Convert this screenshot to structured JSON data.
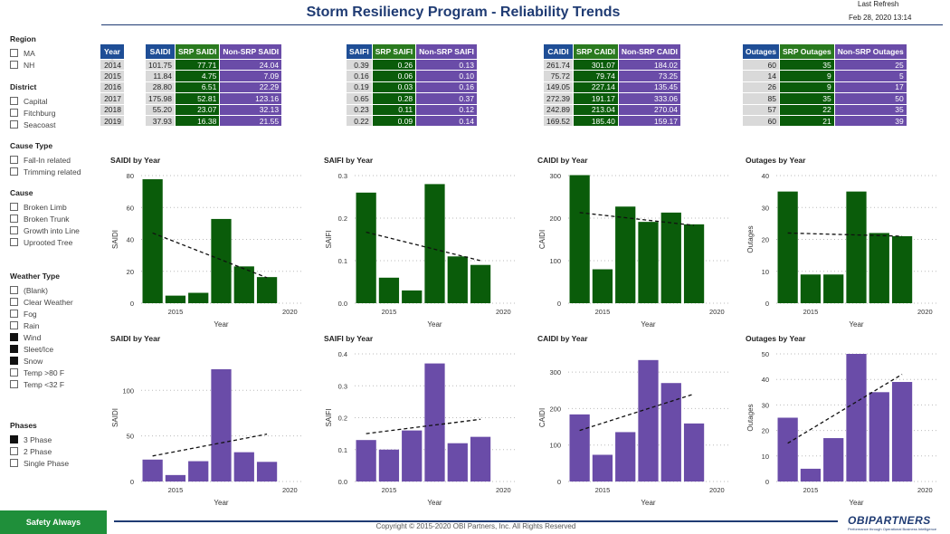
{
  "header": {
    "title": "Storm Resiliency Program - Reliability Trends",
    "refresh_label": "Last Refresh",
    "refresh_value": "Feb 28, 2020 13:14"
  },
  "filters": [
    {
      "title": "Region",
      "items": [
        {
          "label": "MA",
          "checked": false
        },
        {
          "label": "NH",
          "checked": false
        }
      ]
    },
    {
      "title": "District",
      "items": [
        {
          "label": "Capital",
          "checked": false
        },
        {
          "label": "Fitchburg",
          "checked": false
        },
        {
          "label": "Seacoast",
          "checked": false
        }
      ]
    },
    {
      "title": "Cause Type",
      "items": [
        {
          "label": "Fall-In related",
          "checked": false
        },
        {
          "label": "Trimming related",
          "checked": false
        }
      ]
    },
    {
      "title": "Cause",
      "items": [
        {
          "label": "Broken Limb",
          "checked": false
        },
        {
          "label": "Broken Trunk",
          "checked": false
        },
        {
          "label": "Growth into Line",
          "checked": false
        },
        {
          "label": "Uprooted Tree",
          "checked": false
        }
      ]
    },
    {
      "title": "Weather Type",
      "items": [
        {
          "label": "(Blank)",
          "checked": false
        },
        {
          "label": "Clear Weather",
          "checked": false
        },
        {
          "label": "Fog",
          "checked": false
        },
        {
          "label": "Rain",
          "checked": false
        },
        {
          "label": "Wind",
          "checked": true
        },
        {
          "label": "Sleet/Ice",
          "checked": true
        },
        {
          "label": "Snow",
          "checked": true
        },
        {
          "label": "Temp >80 F",
          "checked": false
        },
        {
          "label": "Temp <32 F",
          "checked": false
        }
      ]
    },
    {
      "title": "Phases",
      "items": [
        {
          "label": "3 Phase",
          "checked": true
        },
        {
          "label": "2 Phase",
          "checked": false
        },
        {
          "label": "Single Phase",
          "checked": false
        }
      ]
    }
  ],
  "tables": {
    "year": {
      "header": "Year",
      "values": [
        "2014",
        "2015",
        "2016",
        "2017",
        "2018",
        "2019"
      ]
    },
    "saidi": {
      "headers": [
        "SAIDI",
        "SRP SAIDI",
        "Non-SRP SAIDI"
      ],
      "rows": [
        [
          "101.75",
          "77.71",
          "24.04"
        ],
        [
          "11.84",
          "4.75",
          "7.09"
        ],
        [
          "28.80",
          "6.51",
          "22.29"
        ],
        [
          "175.98",
          "52.81",
          "123.16"
        ],
        [
          "55.20",
          "23.07",
          "32.13"
        ],
        [
          "37.93",
          "16.38",
          "21.55"
        ]
      ]
    },
    "saifi": {
      "headers": [
        "SAIFI",
        "SRP SAIFI",
        "Non-SRP SAIFI"
      ],
      "rows": [
        [
          "0.39",
          "0.26",
          "0.13"
        ],
        [
          "0.16",
          "0.06",
          "0.10"
        ],
        [
          "0.19",
          "0.03",
          "0.16"
        ],
        [
          "0.65",
          "0.28",
          "0.37"
        ],
        [
          "0.23",
          "0.11",
          "0.12"
        ],
        [
          "0.22",
          "0.09",
          "0.14"
        ]
      ]
    },
    "caidi": {
      "headers": [
        "CAIDI",
        "SRP CAIDI",
        "Non-SRP CAIDI"
      ],
      "rows": [
        [
          "261.74",
          "301.07",
          "184.02"
        ],
        [
          "75.72",
          "79.74",
          "73.25"
        ],
        [
          "149.05",
          "227.14",
          "135.45"
        ],
        [
          "272.39",
          "191.17",
          "333.06"
        ],
        [
          "242.89",
          "213.04",
          "270.04"
        ],
        [
          "169.52",
          "185.40",
          "159.17"
        ]
      ]
    },
    "outages": {
      "headers": [
        "Outages",
        "SRP Outages",
        "Non-SRP Outages"
      ],
      "rows": [
        [
          "60",
          "35",
          "25"
        ],
        [
          "14",
          "9",
          "5"
        ],
        [
          "26",
          "9",
          "17"
        ],
        [
          "85",
          "35",
          "50"
        ],
        [
          "57",
          "22",
          "35"
        ],
        [
          "60",
          "21",
          "39"
        ]
      ]
    }
  },
  "chart_data": [
    {
      "type": "bar",
      "title": "SAIDI by Year",
      "xlabel": "Year",
      "ylabel": "SAIDI",
      "x": [
        2014,
        2015,
        2016,
        2017,
        2018,
        2019
      ],
      "values": [
        77.71,
        4.75,
        6.51,
        52.81,
        23.07,
        16.38
      ],
      "ylim": [
        0,
        80
      ],
      "yticks": [
        0,
        20,
        40,
        60,
        80
      ],
      "xticks": [
        2015,
        2020
      ],
      "color": "#0a5c0a",
      "trend": [
        44,
        16
      ]
    },
    {
      "type": "bar",
      "title": "SAIFI by Year",
      "xlabel": "Year",
      "ylabel": "SAIFI",
      "x": [
        2014,
        2015,
        2016,
        2017,
        2018,
        2019
      ],
      "values": [
        0.26,
        0.06,
        0.03,
        0.28,
        0.11,
        0.09
      ],
      "ylim": [
        0,
        0.3
      ],
      "yticks": [
        0.0,
        0.1,
        0.2,
        0.3
      ],
      "xticks": [
        2015,
        2020
      ],
      "color": "#0a5c0a",
      "trend": [
        0.167,
        0.1
      ]
    },
    {
      "type": "bar",
      "title": "CAIDI by Year",
      "xlabel": "Year",
      "ylabel": "CAIDI",
      "x": [
        2014,
        2015,
        2016,
        2017,
        2018,
        2019
      ],
      "values": [
        301.07,
        79.74,
        227.14,
        191.17,
        213.04,
        185.4
      ],
      "ylim": [
        0,
        300
      ],
      "yticks": [
        0,
        100,
        200,
        300
      ],
      "xticks": [
        2015,
        2020
      ],
      "color": "#0a5c0a",
      "trend": [
        213,
        183
      ]
    },
    {
      "type": "bar",
      "title": "Outages by Year",
      "xlabel": "Year",
      "ylabel": "Outages",
      "x": [
        2014,
        2015,
        2016,
        2017,
        2018,
        2019
      ],
      "values": [
        35,
        9,
        9,
        35,
        22,
        21
      ],
      "ylim": [
        0,
        40
      ],
      "yticks": [
        0,
        10,
        20,
        30,
        40
      ],
      "xticks": [
        2015,
        2020
      ],
      "color": "#0a5c0a",
      "trend": [
        22,
        21
      ]
    },
    {
      "type": "bar",
      "title": "SAIDI by Year",
      "xlabel": "Year",
      "ylabel": "SAIDI",
      "x": [
        2014,
        2015,
        2016,
        2017,
        2018,
        2019
      ],
      "values": [
        24.04,
        7.09,
        22.29,
        123.16,
        32.13,
        21.55
      ],
      "ylim": [
        0,
        140
      ],
      "yticks": [
        0,
        50,
        100
      ],
      "xticks": [
        2015,
        2020
      ],
      "color": "#6a4ca8",
      "trend": [
        28,
        52
      ]
    },
    {
      "type": "bar",
      "title": "SAIFI by Year",
      "xlabel": "Year",
      "ylabel": "SAIFI",
      "x": [
        2014,
        2015,
        2016,
        2017,
        2018,
        2019
      ],
      "values": [
        0.13,
        0.1,
        0.16,
        0.37,
        0.12,
        0.14
      ],
      "ylim": [
        0,
        0.4
      ],
      "yticks": [
        0.0,
        0.1,
        0.2,
        0.3,
        0.4
      ],
      "xticks": [
        2015,
        2020
      ],
      "color": "#6a4ca8",
      "trend": [
        0.15,
        0.195
      ]
    },
    {
      "type": "bar",
      "title": "CAIDI by Year",
      "xlabel": "Year",
      "ylabel": "CAIDI",
      "x": [
        2014,
        2015,
        2016,
        2017,
        2018,
        2019
      ],
      "values": [
        184.02,
        73.25,
        135.45,
        333.06,
        270.04,
        159.17
      ],
      "ylim": [
        0,
        350
      ],
      "yticks": [
        0,
        100,
        200,
        300
      ],
      "xticks": [
        2015,
        2020
      ],
      "color": "#6a4ca8",
      "trend": [
        140,
        240
      ]
    },
    {
      "type": "bar",
      "title": "Outages by Year",
      "xlabel": "Year",
      "ylabel": "Outages",
      "x": [
        2014,
        2015,
        2016,
        2017,
        2018,
        2019
      ],
      "values": [
        25,
        5,
        17,
        50,
        35,
        39
      ],
      "ylim": [
        0,
        50
      ],
      "yticks": [
        0,
        10,
        20,
        30,
        40,
        50
      ],
      "xticks": [
        2015,
        2020
      ],
      "color": "#6a4ca8",
      "trend": [
        15,
        42
      ]
    }
  ],
  "footer": {
    "button_label": "Safety Always",
    "copyright": "Copyright © 2015-2020 OBI Partners, Inc. All Rights Reserved",
    "logo_text": "OBIPARTNERS",
    "logo_sub": "Performance through Operational Business Intelligence"
  }
}
